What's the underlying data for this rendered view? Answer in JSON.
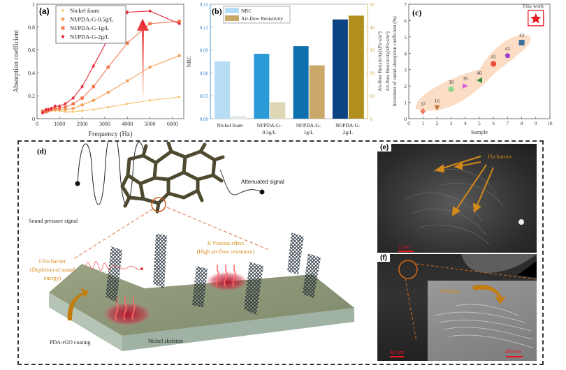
{
  "chart_data": [
    {
      "panel": "(a)",
      "type": "line",
      "xlabel": "Frequency (Hz)",
      "ylabel": "Absorption coefficient",
      "xlim": [
        0,
        6500
      ],
      "ylim": [
        0,
        1
      ],
      "xticks": [
        "0",
        "1000",
        "2000",
        "3000",
        "4000",
        "5000",
        "6000"
      ],
      "yticks": [
        "0",
        "0.2",
        "0.4",
        "0.6",
        "0.8",
        "1"
      ],
      "legend_position": "top-left",
      "x": [
        250,
        400,
        500,
        630,
        800,
        1000,
        1250,
        1600,
        2000,
        2500,
        3150,
        4000,
        5000,
        6300
      ],
      "series": [
        {
          "name": "Nickel foam",
          "color": "#f9c36b",
          "marker": "dot",
          "values": [
            0.07,
            0.07,
            0.07,
            0.07,
            0.07,
            0.07,
            0.06,
            0.06,
            0.07,
            0.08,
            0.1,
            0.13,
            0.16,
            0.19
          ]
        },
        {
          "name": "Nf/PDA-G-0.5g/L",
          "color": "#f6a05a",
          "marker": "circle",
          "values": [
            0.07,
            0.07,
            0.07,
            0.08,
            0.08,
            0.08,
            0.08,
            0.09,
            0.12,
            0.16,
            0.23,
            0.33,
            0.45,
            0.55
          ]
        },
        {
          "name": "Nf/PDA-G-1g/L",
          "color": "#f27a50",
          "marker": "square",
          "values": [
            0.06,
            0.06,
            0.07,
            0.08,
            0.09,
            0.09,
            0.1,
            0.13,
            0.18,
            0.28,
            0.45,
            0.66,
            0.83,
            0.85
          ]
        },
        {
          "name": "Nf/PDA-G-2g/L",
          "color": "#e8283a",
          "marker": "diamond",
          "values": [
            0.05,
            0.08,
            0.08,
            0.09,
            0.11,
            0.11,
            0.13,
            0.18,
            0.28,
            0.46,
            0.7,
            0.93,
            0.94,
            0.83
          ]
        }
      ]
    },
    {
      "panel": "(b)",
      "type": "bar",
      "categories": [
        "Nickel foam",
        "Nf/PDA-G-0.5g/L",
        "Nf/PDA-G-1g/L",
        "Nf/PDA-G-2g/L"
      ],
      "category_lines": [
        [
          "Nickel foam"
        ],
        [
          "Nf/PDA-G-",
          "0.5g/L"
        ],
        [
          "Nf/PDA-G-",
          "1g/L"
        ],
        [
          "Nf/PDA-G-",
          "2g/L"
        ]
      ],
      "ylabel": "NRC",
      "ylabel_right": "Air-flow Resistivity(kPa·s/m²)",
      "ylim": [
        0,
        0.15
      ],
      "ylim_right": [
        0,
        50
      ],
      "yticks": [
        "0.00",
        "0.03",
        "0.06",
        "0.09",
        "0.12",
        "0.15"
      ],
      "yticks_right": [
        "0",
        "10",
        "20",
        "30",
        "40",
        "50"
      ],
      "legend_position": "top-left",
      "series": [
        {
          "name": "NRC",
          "axis": "left",
          "values": [
            0.075,
            0.085,
            0.095,
            0.13
          ],
          "colors": [
            "#b7dcf6",
            "#2a9ad6",
            "#0e6fae",
            "#0b4383"
          ]
        },
        {
          "name": "Air-flow Resistivity",
          "axis": "right",
          "values": [
            1.2,
            7.2,
            23.3,
            45.0
          ],
          "colors": [
            "#e3ebe4",
            "#ddd7b5",
            "#c9a86a",
            "#b08f1f"
          ]
        }
      ],
      "legend_colors": [
        "#b7dcf6",
        "#c9a86a"
      ]
    },
    {
      "panel": "(c)",
      "type": "scatter",
      "xlabel": "Sample",
      "ylabel": "Increment of sound absorption coefficient (%)",
      "ylabel2": "Air-flow Resistivity(kPa·s/m²)",
      "xlim": [
        0,
        10
      ],
      "ylim": [
        0,
        7
      ],
      "xticks": [
        "0",
        "1",
        "2",
        "3",
        "4",
        "5",
        "6",
        "7",
        "8",
        "9",
        "10"
      ],
      "yticks": [
        "0",
        "1",
        "2",
        "3",
        "4",
        "5",
        "6",
        "7"
      ],
      "points": [
        {
          "x": 1,
          "y": 0.45,
          "label": "37",
          "color": "#f27f6c",
          "marker": "diamond"
        },
        {
          "x": 2,
          "y": 0.65,
          "label": "16",
          "color": "#c87a3a",
          "marker": "triangle-down"
        },
        {
          "x": 3,
          "y": 1.8,
          "label": "38",
          "color": "#8fd68a",
          "marker": "circle"
        },
        {
          "x": 4,
          "y": 2.0,
          "label": "39",
          "color": "#e060d8",
          "marker": "triangle-right"
        },
        {
          "x": 5,
          "y": 2.35,
          "label": "40",
          "color": "#3a8c3a",
          "marker": "triangle-left"
        },
        {
          "x": 6,
          "y": 3.35,
          "label": "41",
          "color": "#f04a3a",
          "marker": "circle"
        },
        {
          "x": 7,
          "y": 3.85,
          "label": "42",
          "color": "#9b3ec8",
          "marker": "pentagon"
        },
        {
          "x": 8,
          "y": 4.65,
          "label": "43",
          "color": "#3a6e9a",
          "marker": "square"
        },
        {
          "x": 9,
          "y": 6.15,
          "label": "This work",
          "color": "#e8141e",
          "marker": "star"
        }
      ],
      "highlight_color": "#fbdcc4"
    }
  ],
  "panel_d": {
    "label": "(d)",
    "sound_pressure_signal": "Sound pressure signal",
    "attenuated_signal": "Attenuated signal",
    "fin_barrier": [
      "I Fin barrier",
      "(Depletion of sound",
      "energy)"
    ],
    "viscous_effect": [
      "II Viscous effect",
      "(High air-flow resistance)"
    ],
    "coating_label": "PDA-rGO coating",
    "skeleton_label": "Nickel skeleton",
    "annotation_color": "#d4891a"
  },
  "panel_e": {
    "label": "(e)",
    "annotation": "Fin barrier",
    "scale_bar": "2 um"
  },
  "panel_f": {
    "label": "(f)",
    "annotation": "Wrinkles",
    "scale_bar_main": "40 um",
    "scale_bar_inset": "400 nm"
  }
}
